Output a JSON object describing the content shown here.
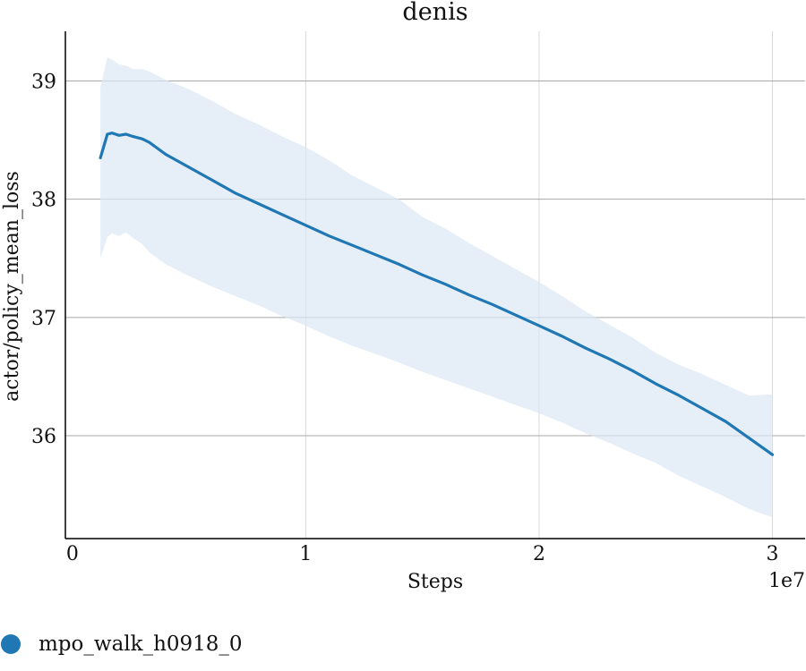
{
  "chart_data": {
    "type": "line",
    "title": "denis",
    "xlabel": "Steps",
    "ylabel": "actor/policy_mean_loss",
    "x_offset_label": "1e7",
    "x_ticks": [
      0,
      1,
      2,
      3
    ],
    "x_tick_labels": [
      "0",
      "1",
      "2",
      "3"
    ],
    "y_ticks": [
      36,
      37,
      38,
      39
    ],
    "y_tick_labels": [
      "36",
      "37",
      "38",
      "39"
    ],
    "xlim": [
      -0.03,
      3.14
    ],
    "ylim": [
      35.13,
      39.42
    ],
    "grid": true,
    "legend_position": "bottom-left",
    "series": [
      {
        "name": "mpo_walk_h0918_0",
        "color": "#1f77b4",
        "band_color": "#dbe8f4",
        "x": [
          0.12,
          0.15,
          0.17,
          0.2,
          0.23,
          0.26,
          0.3,
          0.33,
          0.4,
          0.5,
          0.6,
          0.7,
          0.8,
          0.9,
          1.0,
          1.1,
          1.2,
          1.3,
          1.4,
          1.5,
          1.6,
          1.7,
          1.8,
          1.9,
          2.0,
          2.1,
          2.2,
          2.3,
          2.4,
          2.5,
          2.6,
          2.7,
          2.8,
          2.9,
          3.0
        ],
        "y": [
          38.35,
          38.55,
          38.56,
          38.54,
          38.55,
          38.53,
          38.51,
          38.48,
          38.38,
          38.27,
          38.16,
          38.05,
          37.96,
          37.87,
          37.78,
          37.69,
          37.61,
          37.53,
          37.45,
          37.36,
          37.28,
          37.19,
          37.11,
          37.02,
          36.93,
          36.84,
          36.74,
          36.65,
          36.55,
          36.44,
          36.34,
          36.23,
          36.12,
          35.98,
          35.84
        ],
        "lower": [
          37.5,
          37.68,
          37.71,
          37.69,
          37.72,
          37.67,
          37.62,
          37.55,
          37.45,
          37.35,
          37.26,
          37.18,
          37.1,
          37.01,
          36.93,
          36.84,
          36.76,
          36.69,
          36.62,
          36.54,
          36.47,
          36.4,
          36.33,
          36.26,
          36.19,
          36.11,
          36.02,
          35.94,
          35.85,
          35.77,
          35.66,
          35.57,
          35.48,
          35.38,
          35.31
        ],
        "upper": [
          38.95,
          39.2,
          39.18,
          39.14,
          39.13,
          39.1,
          39.1,
          39.08,
          39.01,
          38.93,
          38.83,
          38.72,
          38.63,
          38.53,
          38.44,
          38.33,
          38.2,
          38.1,
          38.0,
          37.85,
          37.75,
          37.63,
          37.52,
          37.41,
          37.3,
          37.18,
          37.05,
          36.94,
          36.83,
          36.7,
          36.6,
          36.52,
          36.43,
          36.34,
          36.35
        ]
      }
    ]
  }
}
